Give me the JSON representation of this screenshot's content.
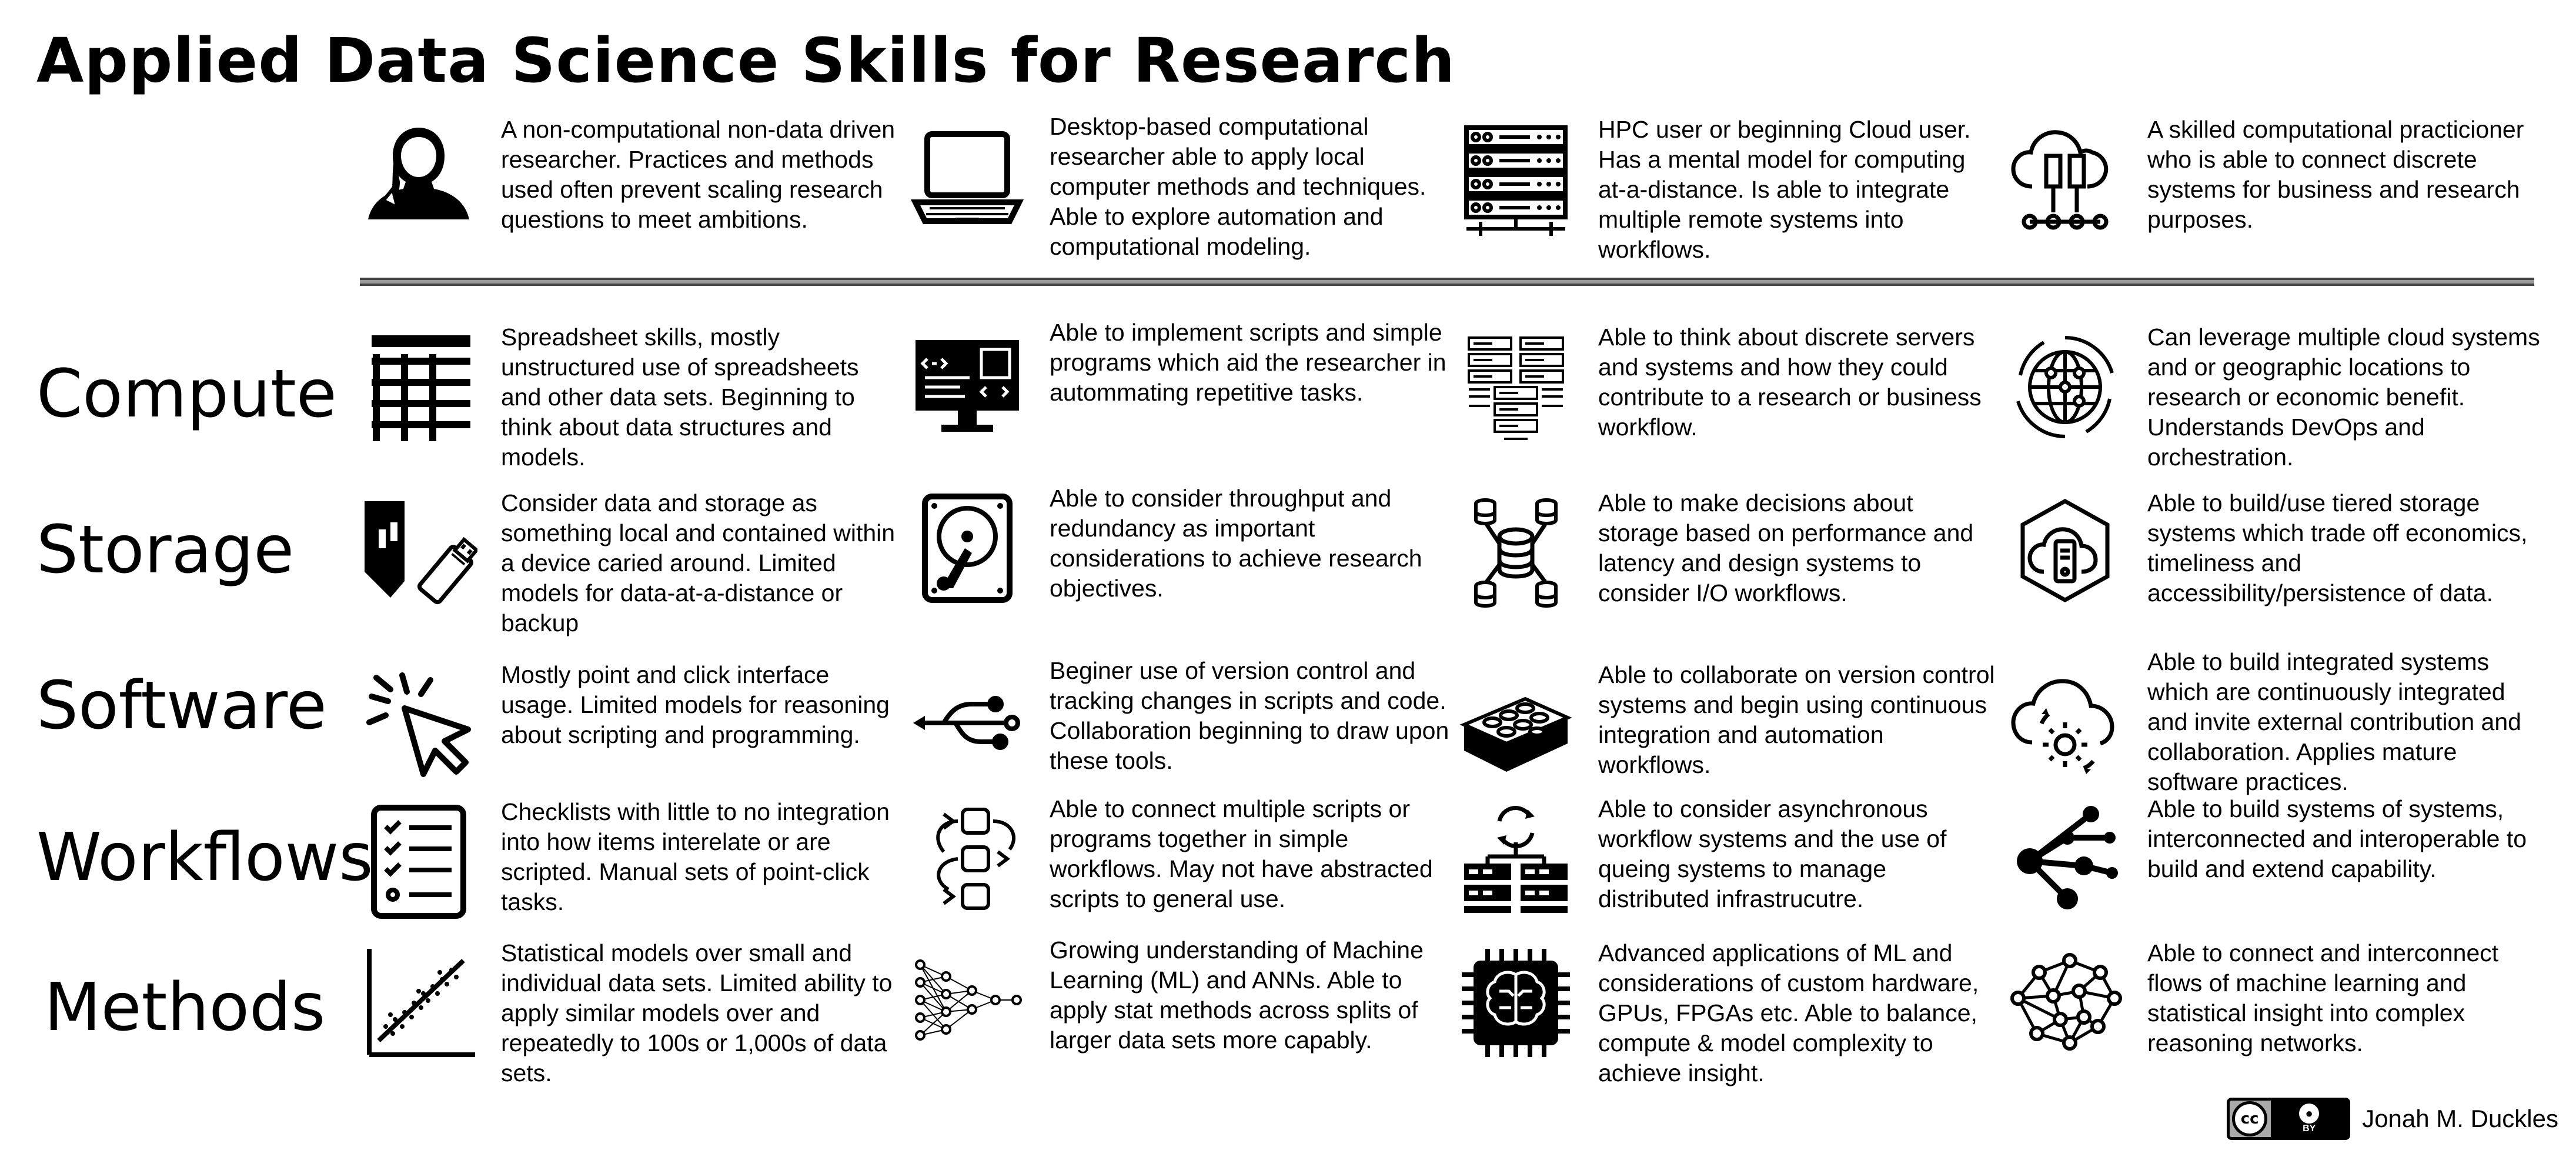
{
  "title": "Applied Data Science Skills for Research",
  "row_labels": [
    "Compute",
    "Storage",
    "Software",
    "Workflows",
    "Methods"
  ],
  "header": [
    {
      "icon": "researcher-icon",
      "text": "A non-computational non-data driven researcher. Practices and methods used often prevent scaling research questions to meet ambitions."
    },
    {
      "icon": "laptop-icon",
      "text": "Desktop-based computational researcher able to apply local computer methods and techniques. Able to explore automation and computational modeling."
    },
    {
      "icon": "server-rack-icon",
      "text": "HPC user or beginning Cloud user. Has a mental model for computing at-a-distance. Is able to integrate multiple remote systems into workflows."
    },
    {
      "icon": "cloud-network-icon",
      "text": "A skilled computational practicioner who is able to connect discrete systems for business and research purposes."
    }
  ],
  "rows": [
    [
      {
        "icon": "spreadsheet-icon",
        "text": "Spreadsheet skills, mostly unstructured use of spreadsheets and other data sets. Beginning to think about data structures and models."
      },
      {
        "icon": "code-monitor-icon",
        "text": "Able to implement scripts and simple programs which aid the researcher in autommating repetitive tasks."
      },
      {
        "icon": "server-cluster-icon",
        "text": "Able to think about discrete servers and systems and how they could contribute to a research or business workflow."
      },
      {
        "icon": "globe-network-icon",
        "text": "Can leverage multiple cloud systems and or geographic locations to research or economic benefit. Understands DevOps and orchestration."
      }
    ],
    [
      {
        "icon": "usb-drive-icon",
        "text": "Consider data and storage as something local and contained within a device caried around. Limited models for data-at-a-distance or backup"
      },
      {
        "icon": "hard-drive-icon",
        "text": "Able to consider throughput and redundancy as important considerations to achieve research objectives."
      },
      {
        "icon": "database-network-icon",
        "text": "Able to make decisions about storage based on performance and latency and design systems to consider I/O workflows."
      },
      {
        "icon": "cloud-storage-icon",
        "text": "Able to build/use tiered storage systems which trade off economics, timeliness and accessibility/persistence of data."
      }
    ],
    [
      {
        "icon": "cursor-click-icon",
        "text": "Mostly point and click interface usage. Limited models for reasoning about scripting and programming."
      },
      {
        "icon": "git-branch-icon",
        "text": "Beginer use of version control and tracking changes in scripts and code. Collaboration beginning to draw upon these tools."
      },
      {
        "icon": "building-block-icon",
        "text": "Able to collaborate on version control systems and begin using continuous integration and automation workflows."
      },
      {
        "icon": "cloud-gear-icon",
        "text": "Able to build integrated systems which are continuously integrated and invite external contribution and collaboration. Applies mature software practices."
      }
    ],
    [
      {
        "icon": "checklist-icon",
        "text": "Checklists with little to no integration into how items interelate or are scripted. Manual sets of point-click tasks."
      },
      {
        "icon": "script-flow-icon",
        "text": "Able to connect multiple scripts or programs together in simple workflows. May not have abstracted scripts to general use."
      },
      {
        "icon": "async-servers-icon",
        "text": "Able to consider asynchronous workflow systems and the use of queing systems to manage distributed infrastrucutre."
      },
      {
        "icon": "share-network-icon",
        "text": "Able to build systems of systems, interconnected and interoperable to build and extend capability."
      }
    ],
    [
      {
        "icon": "scatter-plot-icon",
        "text": "Statistical models over small and individual data sets. Limited ability to apply similar models over and repeatedly to 100s or 1,000s of data sets."
      },
      {
        "icon": "neural-network-icon",
        "text": "Growing understanding of Machine Learning (ML) and ANNs. Able to apply stat methods across splits of larger data sets more capably."
      },
      {
        "icon": "ai-chip-icon",
        "text": "Advanced applications of ML and considerations of custom hardware, GPUs, FPGAs etc. Able to balance, compute & model complexity to achieve insight."
      },
      {
        "icon": "mesh-network-icon",
        "text": "Able to connect and interconnect flows of machine learning and statistical insight into complex reasoning networks."
      }
    ]
  ],
  "license": {
    "cc_mark": "cc",
    "by_mark": "BY",
    "icon": "creative-commons-icon"
  },
  "author": "Jonah M. Duckles"
}
